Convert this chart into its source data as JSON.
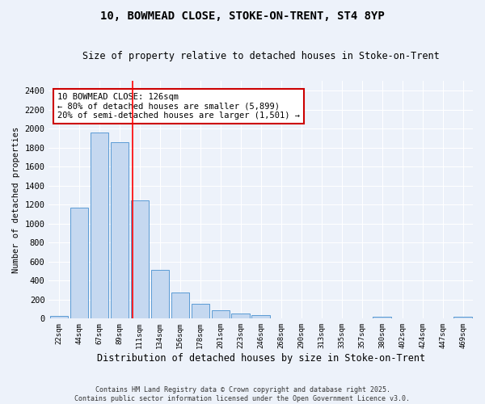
{
  "title_line1": "10, BOWMEAD CLOSE, STOKE-ON-TRENT, ST4 8YP",
  "title_line2": "Size of property relative to detached houses in Stoke-on-Trent",
  "xlabel": "Distribution of detached houses by size in Stoke-on-Trent",
  "ylabel": "Number of detached properties",
  "categories": [
    "22sqm",
    "44sqm",
    "67sqm",
    "89sqm",
    "111sqm",
    "134sqm",
    "156sqm",
    "178sqm",
    "201sqm",
    "223sqm",
    "246sqm",
    "268sqm",
    "290sqm",
    "313sqm",
    "335sqm",
    "357sqm",
    "380sqm",
    "402sqm",
    "424sqm",
    "447sqm",
    "469sqm"
  ],
  "values": [
    25,
    1170,
    1960,
    1860,
    1245,
    510,
    275,
    155,
    90,
    50,
    35,
    0,
    0,
    0,
    0,
    0,
    20,
    0,
    0,
    0,
    20
  ],
  "bar_color": "#c5d8f0",
  "bar_edge_color": "#5b9bd5",
  "annotation_box_text": "10 BOWMEAD CLOSE: 126sqm\n← 80% of detached houses are smaller (5,899)\n20% of semi-detached houses are larger (1,501) →",
  "ylim": [
    0,
    2500
  ],
  "yticks": [
    0,
    200,
    400,
    600,
    800,
    1000,
    1200,
    1400,
    1600,
    1800,
    2000,
    2200,
    2400
  ],
  "red_line_x": 3.63,
  "footer_line1": "Contains HM Land Registry data © Crown copyright and database right 2025.",
  "footer_line2": "Contains public sector information licensed under the Open Government Licence v3.0.",
  "bg_color": "#edf2fa",
  "grid_color": "#ffffff",
  "annotation_box_color": "#ffffff",
  "annotation_border_color": "#cc0000"
}
